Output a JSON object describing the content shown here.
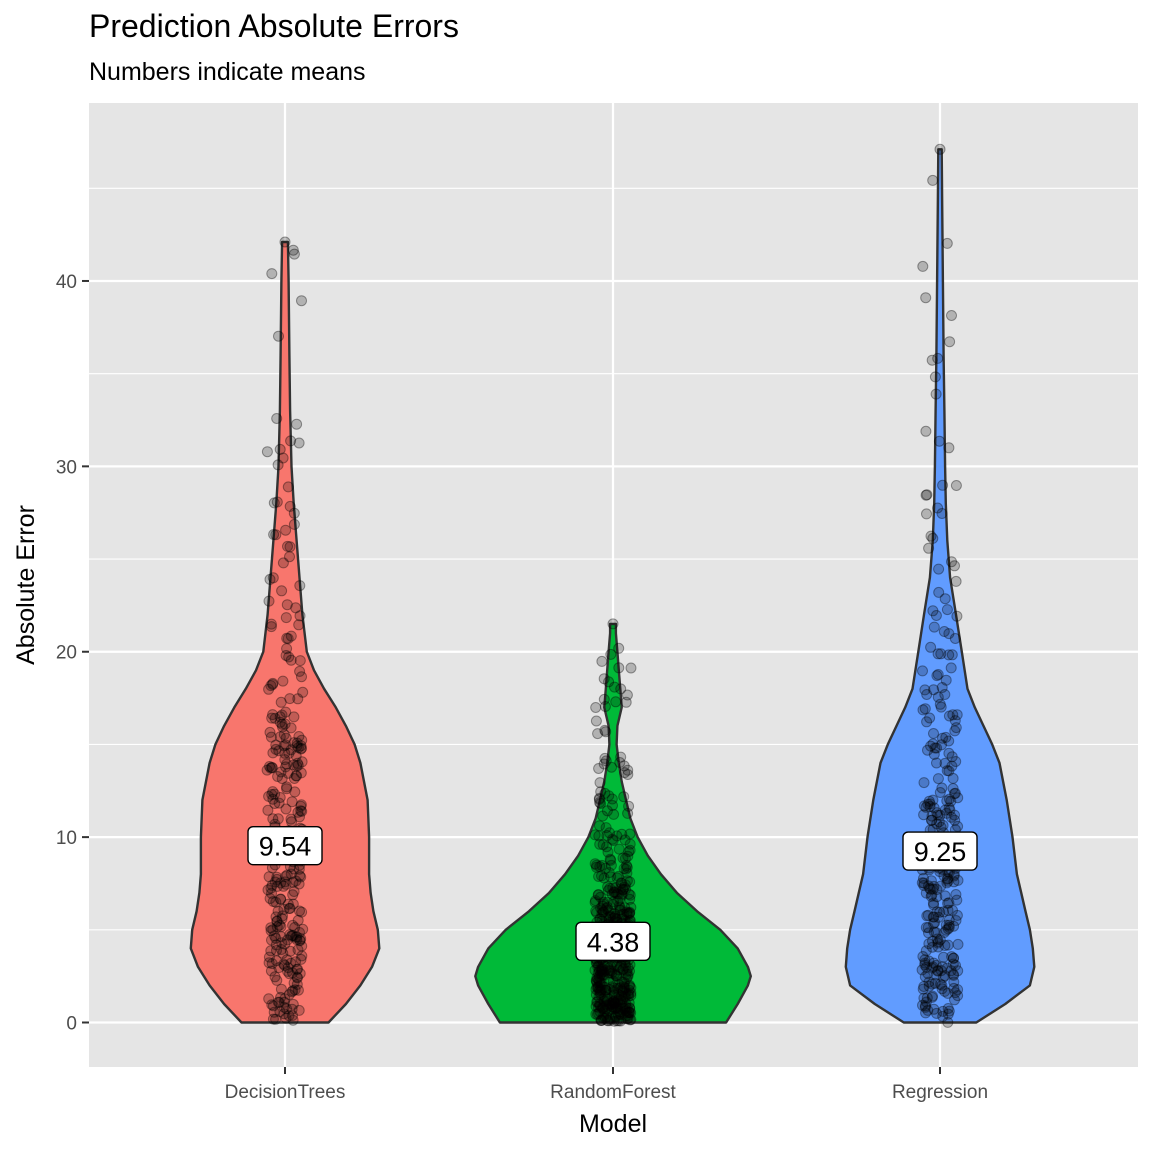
{
  "chart_data": {
    "type": "violin",
    "title": "Prediction Absolute Errors",
    "subtitle": "Numbers indicate means",
    "xlabel": "Model",
    "ylabel": "Absolute Error",
    "categories": [
      "DecisionTrees",
      "RandomForest",
      "Regression"
    ],
    "ylim": [
      -2.4,
      49.6
    ],
    "yticks": [
      0,
      10,
      20,
      30,
      40
    ],
    "grid": true,
    "legend": "none",
    "colors": [
      "#F8766D",
      "#00BA38",
      "#619CFF"
    ],
    "means": [
      9.54,
      4.38,
      9.25
    ],
    "mean_labels": [
      "9.54",
      "4.38",
      "9.25"
    ],
    "max": [
      42.1,
      21.5,
      47.1
    ],
    "density_width": [
      [
        [
          0,
          0.3
        ],
        [
          1,
          0.42
        ],
        [
          2,
          0.52
        ],
        [
          3,
          0.6
        ],
        [
          4,
          0.65
        ],
        [
          5,
          0.64
        ],
        [
          6,
          0.61
        ],
        [
          7,
          0.59
        ],
        [
          8,
          0.58
        ],
        [
          10,
          0.58
        ],
        [
          12,
          0.57
        ],
        [
          14,
          0.52
        ],
        [
          15,
          0.48
        ],
        [
          16,
          0.42
        ],
        [
          17,
          0.35
        ],
        [
          18,
          0.27
        ],
        [
          19,
          0.2
        ],
        [
          20,
          0.15
        ],
        [
          22,
          0.12
        ],
        [
          24,
          0.1
        ],
        [
          26,
          0.08
        ],
        [
          28,
          0.06
        ],
        [
          30,
          0.045
        ],
        [
          33,
          0.035
        ],
        [
          36,
          0.03
        ],
        [
          40,
          0.025
        ],
        [
          42.1,
          0.02
        ]
      ],
      [
        [
          0,
          0.78
        ],
        [
          1,
          0.86
        ],
        [
          2,
          0.93
        ],
        [
          2.5,
          0.95
        ],
        [
          3,
          0.93
        ],
        [
          4,
          0.86
        ],
        [
          5,
          0.74
        ],
        [
          6,
          0.58
        ],
        [
          7,
          0.44
        ],
        [
          8,
          0.33
        ],
        [
          9,
          0.24
        ],
        [
          10,
          0.17
        ],
        [
          11,
          0.12
        ],
        [
          12,
          0.09
        ],
        [
          13,
          0.06
        ],
        [
          14,
          0.04
        ],
        [
          15,
          0.025
        ],
        [
          16,
          0.03
        ],
        [
          17,
          0.06
        ],
        [
          18,
          0.05
        ],
        [
          19,
          0.04
        ],
        [
          20,
          0.03
        ],
        [
          21,
          0.02
        ],
        [
          21.5,
          0.02
        ]
      ],
      [
        [
          0,
          0.25
        ],
        [
          1,
          0.45
        ],
        [
          2,
          0.62
        ],
        [
          3,
          0.65
        ],
        [
          4,
          0.64
        ],
        [
          5,
          0.62
        ],
        [
          6,
          0.59
        ],
        [
          7,
          0.56
        ],
        [
          8,
          0.53
        ],
        [
          10,
          0.5
        ],
        [
          12,
          0.46
        ],
        [
          14,
          0.41
        ],
        [
          15,
          0.36
        ],
        [
          16,
          0.3
        ],
        [
          17,
          0.24
        ],
        [
          18,
          0.19
        ],
        [
          20,
          0.15
        ],
        [
          22,
          0.11
        ],
        [
          24,
          0.07
        ],
        [
          26,
          0.05
        ],
        [
          28,
          0.04
        ],
        [
          30,
          0.035
        ],
        [
          33,
          0.03
        ],
        [
          36,
          0.025
        ],
        [
          40,
          0.02
        ],
        [
          44,
          0.015
        ],
        [
          47.1,
          0.012
        ]
      ]
    ]
  }
}
